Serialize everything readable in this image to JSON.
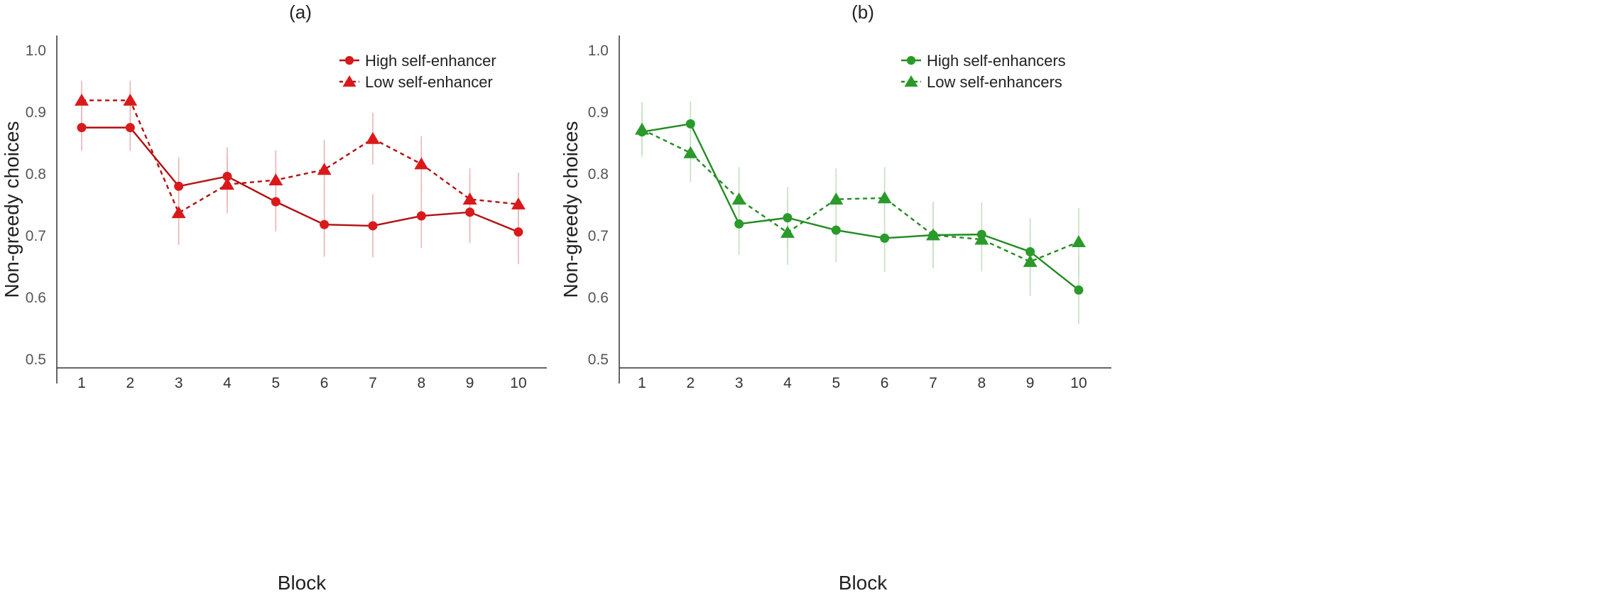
{
  "chart_data": [
    {
      "type": "line",
      "title": "(a)",
      "xlabel": "Block",
      "ylabel": "Non-greedy choices",
      "ylim": [
        0.5,
        1.0
      ],
      "yticks": [
        "0.5",
        "0.6",
        "0.7",
        "0.8",
        "0.9",
        "1.0"
      ],
      "categories": [
        "1",
        "2",
        "3",
        "4",
        "5",
        "6",
        "7",
        "8",
        "9",
        "10"
      ],
      "legend_position": "top-right",
      "colors": {
        "line": "#b30f0f",
        "marker": "#d91a1a",
        "error": "#e8b4b4"
      },
      "series": [
        {
          "name": "High self-enhancer",
          "marker": "circle",
          "line": "solid",
          "values": [
            0.874,
            0.874,
            0.779,
            0.795,
            0.754,
            0.717,
            0.715,
            0.731,
            0.737,
            0.705
          ],
          "error": [
            0.038,
            0.038,
            0.047,
            0.047,
            0.048,
            0.052,
            0.051,
            0.052,
            0.05,
            0.052
          ]
        },
        {
          "name": "Low self-enhancer",
          "marker": "triangle",
          "line": "dashed",
          "values": [
            0.918,
            0.918,
            0.736,
            0.782,
            0.789,
            0.806,
            0.856,
            0.815,
            0.758,
            0.75
          ],
          "error": [
            0.032,
            0.032,
            0.052,
            0.047,
            0.048,
            0.048,
            0.042,
            0.045,
            0.05,
            0.051
          ]
        }
      ]
    },
    {
      "type": "line",
      "title": "(b)",
      "xlabel": "Block",
      "ylabel": "Non-greedy choices",
      "ylim": [
        0.5,
        1.0
      ],
      "yticks": [
        "0.5",
        "0.6",
        "0.7",
        "0.8",
        "0.9",
        "1.0"
      ],
      "categories": [
        "1",
        "2",
        "3",
        "4",
        "5",
        "6",
        "7",
        "8",
        "9",
        "10"
      ],
      "legend_position": "top-right",
      "colors": {
        "line": "#228b22",
        "marker": "#2a9a2a",
        "error": "#c3dfc3"
      },
      "series": [
        {
          "name": "High self-enhancers",
          "marker": "circle",
          "line": "solid",
          "values": [
            0.867,
            0.88,
            0.718,
            0.728,
            0.708,
            0.695,
            0.7,
            0.701,
            0.673,
            0.611
          ],
          "error": [
            0.036,
            0.036,
            0.05,
            0.05,
            0.052,
            0.055,
            0.054,
            0.052,
            0.054,
            0.055
          ]
        },
        {
          "name": "Low self-enhancers",
          "marker": "triangle",
          "line": "dashed",
          "values": [
            0.871,
            0.833,
            0.758,
            0.704,
            0.758,
            0.76,
            0.7,
            0.693,
            0.657,
            0.689
          ],
          "error": [
            0.044,
            0.047,
            0.052,
            0.052,
            0.05,
            0.05,
            0.052,
            0.052,
            0.055,
            0.055
          ]
        }
      ]
    }
  ]
}
